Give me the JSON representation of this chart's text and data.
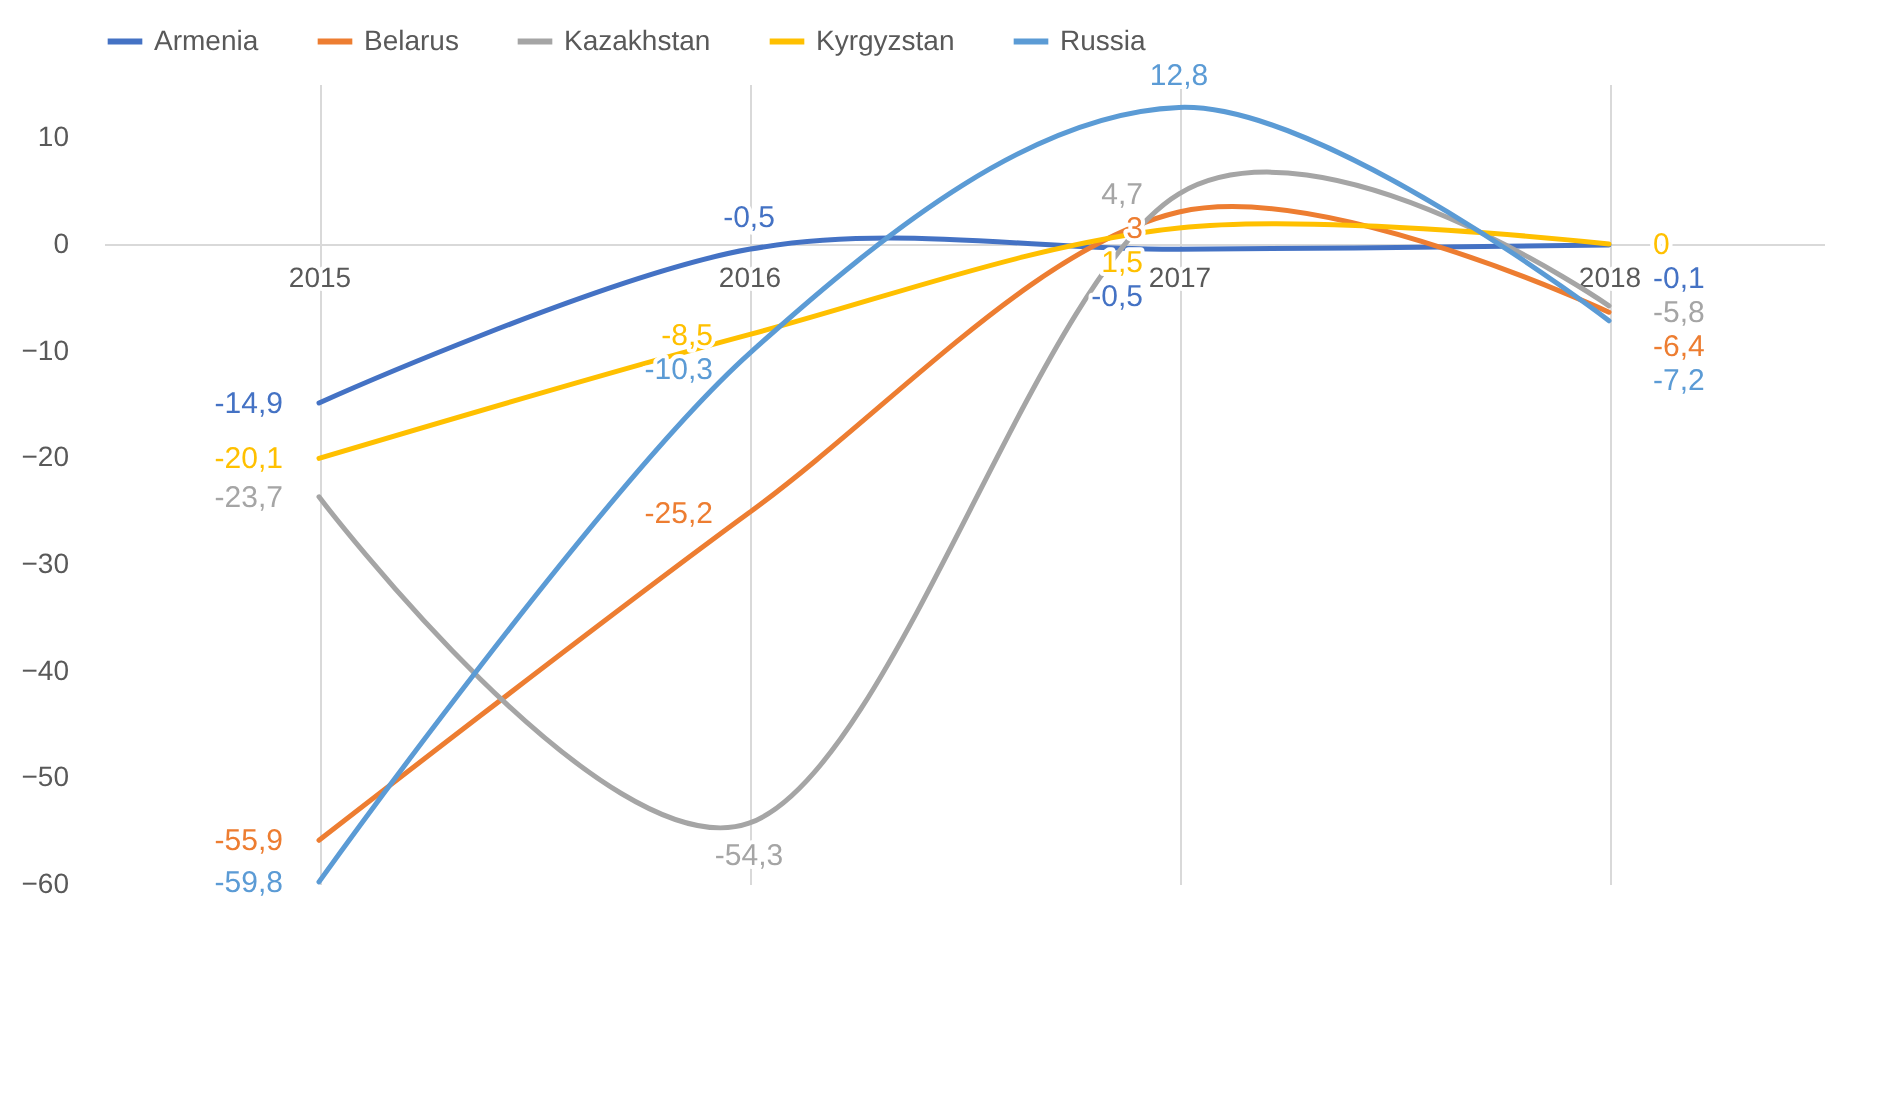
{
  "chart_data": {
    "type": "line",
    "categories": [
      "2015",
      "2016",
      "2017",
      "2018"
    ],
    "series": [
      {
        "name": "Armenia",
        "color": "#4472c4",
        "values": [
          -14.9,
          -0.5,
          -0.5,
          -0.1
        ],
        "value_labels": [
          "-14,9",
          "-0,5",
          "-0,5",
          "-0,1"
        ]
      },
      {
        "name": "Belarus",
        "color": "#ed7d31",
        "values": [
          -55.9,
          -25.2,
          3,
          -6.4
        ],
        "value_labels": [
          "-55,9",
          "-25,2",
          "3",
          "-6,4"
        ]
      },
      {
        "name": "Kazakhstan",
        "color": "#a5a5a5",
        "values": [
          -23.7,
          -54.3,
          4.7,
          -5.8
        ],
        "value_labels": [
          "-23,7",
          "-54,3",
          "4,7",
          "-5,8"
        ]
      },
      {
        "name": "Kyrgyzstan",
        "color": "#ffc000",
        "values": [
          -20.1,
          -8.5,
          1.5,
          0
        ],
        "value_labels": [
          "-20,1",
          "-8,5",
          "1,5",
          "0"
        ]
      },
      {
        "name": "Russia",
        "color": "#5b9bd5",
        "values": [
          -59.8,
          -10.3,
          12.8,
          -7.2
        ],
        "value_labels": [
          "-59,8",
          "-10,3",
          "12,8",
          "-7,2"
        ]
      }
    ],
    "ylim": [
      -60,
      15
    ],
    "yticks": [
      -60,
      -50,
      -40,
      -30,
      -20,
      -10,
      0,
      10
    ],
    "grid": "x",
    "legend": "top",
    "marker": "none",
    "line_style": "solid"
  }
}
